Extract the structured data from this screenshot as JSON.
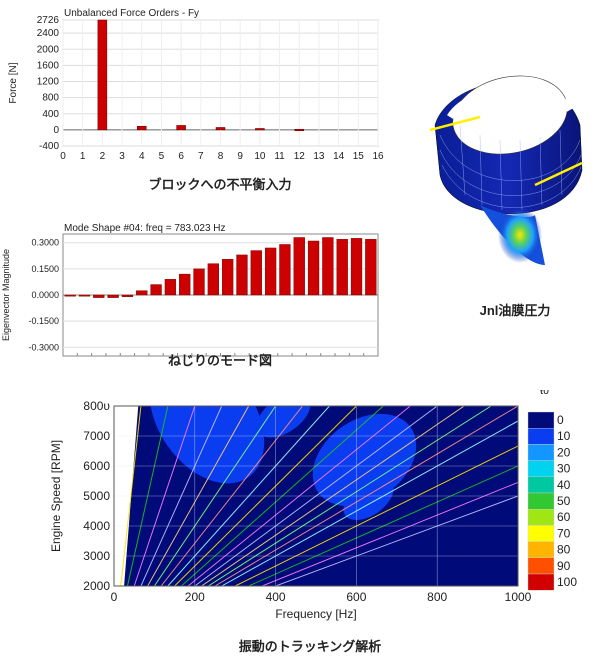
{
  "chart_data": [
    {
      "type": "bar",
      "title": "Unbalanced Force Orders - Fy",
      "ylabel": "Force [N]",
      "xlabel": "",
      "caption": "ブロックへの不平衡入力",
      "ylim": [
        -400,
        2726
      ],
      "yticks": [
        2726,
        2400,
        2000,
        1600,
        1200,
        800,
        400,
        0,
        -400
      ],
      "xlim": [
        0,
        16
      ],
      "xticks": [
        0,
        1,
        2,
        3,
        4,
        5,
        6,
        7,
        8,
        9,
        10,
        11,
        12,
        13,
        14,
        15,
        16
      ],
      "x": [
        2,
        4,
        6,
        8,
        10,
        12
      ],
      "values": [
        2726,
        90,
        110,
        60,
        35,
        15
      ],
      "grid": true,
      "bar_color": "#cc0000"
    },
    {
      "type": "bar",
      "title": "Mode Shape #04: freq = 783.023 Hz",
      "ylabel": "Eigenvector Magnitude",
      "xlabel": "",
      "caption": "ねじりのモード図",
      "ylim": [
        -0.35,
        0.35
      ],
      "ytick_labels": [
        "0.3000",
        "0.1500",
        "0.0000",
        "-0.1500",
        "-0.3000"
      ],
      "yticks": [
        0.3,
        0.15,
        0.0,
        -0.15,
        -0.3
      ],
      "values": [
        0.0,
        0.0,
        -0.015,
        -0.015,
        -0.01,
        0.025,
        0.06,
        0.09,
        0.12,
        0.15,
        0.18,
        0.205,
        0.23,
        0.255,
        0.27,
        0.29,
        0.33,
        0.31,
        0.33,
        0.32,
        0.325,
        0.32
      ],
      "grid": true,
      "bar_color": "#cc0000"
    },
    {
      "type": "heatmap",
      "title": "",
      "xlabel": "Frequency [Hz]",
      "ylabel": "Engine Speed [RPM]",
      "caption": "振動のトラッキング解析",
      "xlim": [
        0,
        1000
      ],
      "ylim": [
        2000,
        8000
      ],
      "xticks": [
        0,
        200,
        400,
        600,
        800,
        1000
      ],
      "yticks": [
        2000,
        3000,
        4000,
        5000,
        6000,
        7000,
        8000
      ],
      "ytick_labels": [
        "2000",
        "3000",
        "4000",
        "5000",
        "6000",
        "7000",
        "800υ"
      ],
      "colorbar": {
        "header": "ŧυ",
        "labels": [
          "0",
          "10",
          "20",
          "30",
          "40",
          "50",
          "60",
          "70",
          "80",
          "90",
          "100"
        ],
        "colors": [
          "#000a78",
          "#0a3cf0",
          "#1496ff",
          "#00d2f0",
          "#00c8a0",
          "#32c832",
          "#a0e614",
          "#ffff00",
          "#ffb400",
          "#ff5000",
          "#d20000"
        ]
      },
      "order_lines": [
        0.5,
        1,
        1.5,
        2,
        2.5,
        3,
        3.5,
        4,
        4.5,
        5,
        5.5,
        6,
        6.5,
        7,
        7.5,
        8,
        9,
        10,
        11,
        12
      ],
      "hotspots": [
        {
          "freq": 230,
          "rpm": 7600,
          "level": 90
        },
        {
          "freq": 620,
          "rpm": 6200,
          "level": 70
        },
        {
          "freq": 420,
          "rpm": 7700,
          "level": 40
        },
        {
          "freq": 630,
          "rpm": 4900,
          "level": 30
        }
      ]
    }
  ],
  "illustration": {
    "caption": "Jnl油膜圧力"
  }
}
